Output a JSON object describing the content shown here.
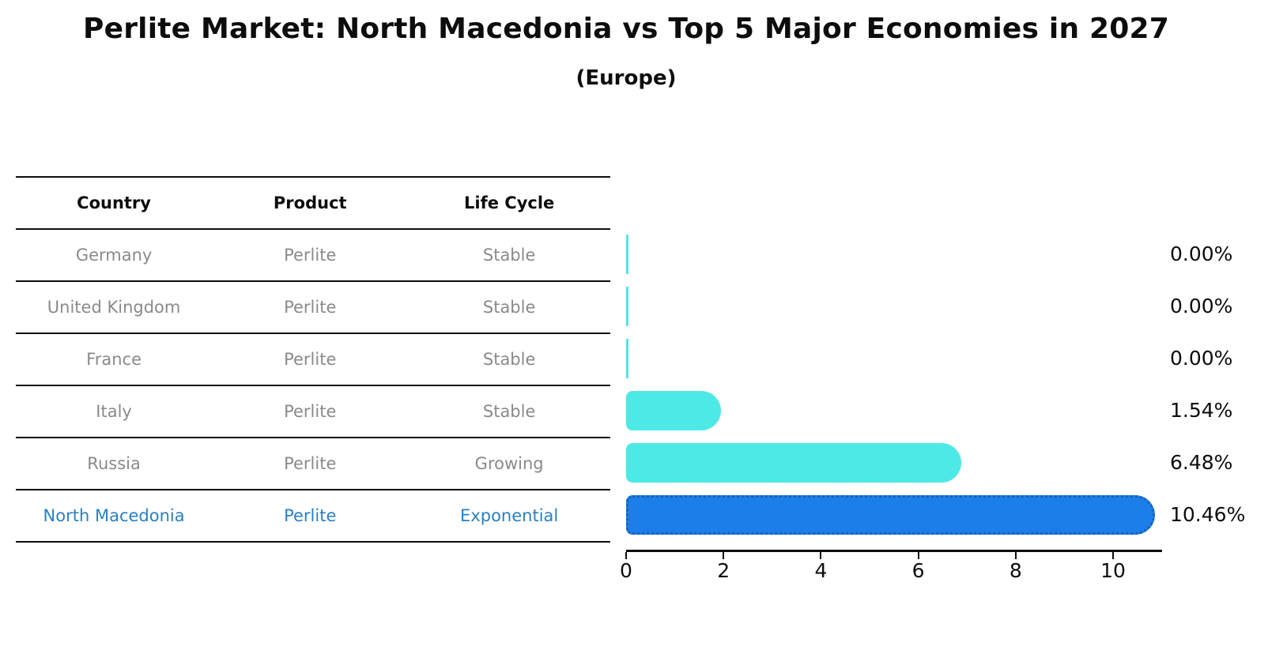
{
  "title": "Perlite Market: North Macedonia vs Top 5 Major Economies in 2027",
  "subtitle": "(Europe)",
  "table": {
    "headers": [
      "Country",
      "Product",
      "Life Cycle"
    ],
    "rows": [
      {
        "country": "Germany",
        "product": "Perlite",
        "life_cycle": "Stable",
        "highlight": false
      },
      {
        "country": "United Kingdom",
        "product": "Perlite",
        "life_cycle": "Stable",
        "highlight": false
      },
      {
        "country": "France",
        "product": "Perlite",
        "life_cycle": "Stable",
        "highlight": false
      },
      {
        "country": "Italy",
        "product": "Perlite",
        "life_cycle": "Stable",
        "highlight": false
      },
      {
        "country": "Russia",
        "product": "Perlite",
        "life_cycle": "Growing",
        "highlight": false
      },
      {
        "country": "North Macedonia",
        "product": "Perlite",
        "life_cycle": "Exponential",
        "highlight": true
      }
    ]
  },
  "chart_data": {
    "type": "bar",
    "orientation": "horizontal",
    "title": "Perlite Market: North Macedonia vs Top 5 Major Economies in 2027",
    "subtitle": "(Europe)",
    "categories": [
      "Germany",
      "United Kingdom",
      "France",
      "Italy",
      "Russia",
      "North Macedonia"
    ],
    "values": [
      0.0,
      0.0,
      0.0,
      1.54,
      6.48,
      10.46
    ],
    "value_labels": [
      "0.00%",
      "0.00%",
      "0.00%",
      "1.54%",
      "6.48%",
      "10.46%"
    ],
    "x_ticks": [
      0,
      2,
      4,
      6,
      8,
      10
    ],
    "xlim": [
      0,
      11
    ],
    "grid": false,
    "legend": false,
    "highlight_index": 5,
    "colors": {
      "bar_default": "#4DE9E6",
      "bar_highlight": "#1C7EE8",
      "bar_highlight_border": "#1A5FC0",
      "highlight_text": "#2980c4",
      "table_text": "#8a8a8a",
      "axis_text": "#0d0d0d"
    }
  }
}
